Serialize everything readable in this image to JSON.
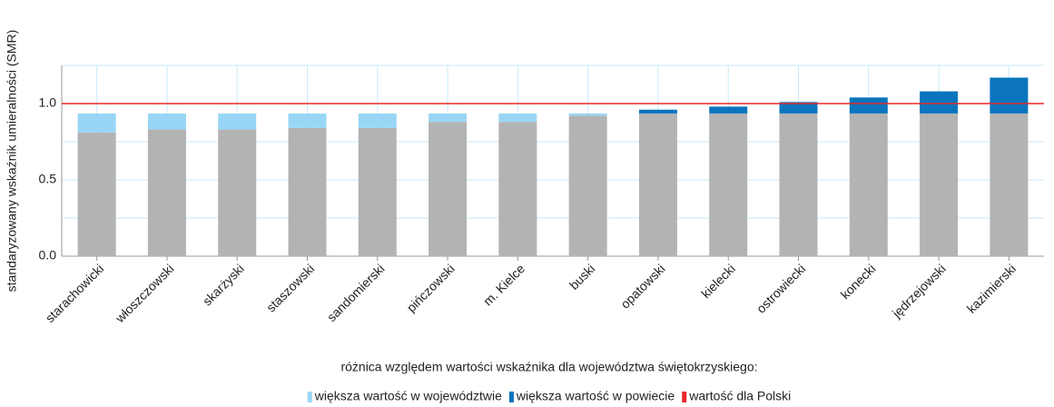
{
  "chart_data": {
    "type": "bar",
    "stacked": true,
    "y_label": "standaryzowany wskaźnik umieralności (SMR)",
    "legend_title": "różnica względem wartości wskaźnika dla województwa świętokrzyskiego:",
    "categories": [
      "starachowicki",
      "włoszczowski",
      "skarżyski",
      "staszowski",
      "sandomierski",
      "pińczowski",
      "m. Kielce",
      "buski",
      "opatowski",
      "kielecki",
      "ostrowiecki",
      "konecki",
      "jędrzejowski",
      "kazimierski"
    ],
    "series": [
      {
        "color": "#b3b3b3",
        "values": [
          0.81,
          0.83,
          0.83,
          0.84,
          0.84,
          0.88,
          0.88,
          0.92,
          0.935,
          0.935,
          0.935,
          0.935,
          0.935,
          0.935
        ]
      },
      {
        "name": "większa wartość w województwie",
        "color": "#99d6f5",
        "values": [
          0.125,
          0.105,
          0.105,
          0.095,
          0.095,
          0.055,
          0.055,
          0.015,
          0,
          0,
          0,
          0,
          0,
          0
        ]
      },
      {
        "name": "większa wartość w powiecie",
        "color": "#0a75bc",
        "values": [
          0,
          0,
          0,
          0,
          0,
          0,
          0,
          0,
          0.025,
          0.045,
          0.075,
          0.105,
          0.145,
          0.235
        ]
      }
    ],
    "reference": {
      "name": "wartość dla Polski",
      "value": 1.0,
      "color": "#e8282b"
    },
    "ylim": [
      0,
      1.25
    ],
    "yticks": [
      {
        "value": 0,
        "label": "0.0"
      },
      {
        "value": 0.5,
        "label": "0.5"
      },
      {
        "value": 1,
        "label": "1.0"
      }
    ],
    "minor_yticks": [
      0.25,
      0.75,
      1.25
    ],
    "grid": true,
    "grid_color": "#c9e9f9"
  }
}
